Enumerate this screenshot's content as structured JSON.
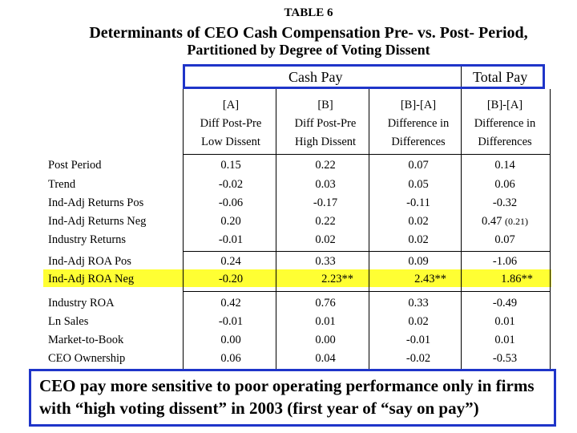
{
  "table_label": "TABLE 6",
  "title_line1": "Determinants of CEO Cash Compensation Pre- vs. Post- Period,",
  "title_line2": "Partitioned by Degree of Voting Dissent",
  "header": {
    "cash_pay": "Cash Pay",
    "total_pay": "Total Pay"
  },
  "columns": [
    {
      "line1": "[A]",
      "line2": "Diff Post-Pre",
      "line3": "Low Dissent"
    },
    {
      "line1": "[B]",
      "line2": "Diff Post-Pre",
      "line3": "High Dissent"
    },
    {
      "line1": "[B]-[A]",
      "line2": "Difference in",
      "line3": "Differences"
    },
    {
      "line1": "[B]-[A]",
      "line2": "Difference in",
      "line3": "Differences"
    }
  ],
  "rows": [
    {
      "label": "Post Period",
      "values": [
        "0.15",
        "0.22",
        "0.07",
        "0.14"
      ]
    },
    {
      "label": "Trend",
      "values": [
        "-0.02",
        "0.03",
        "0.05",
        "0.06"
      ]
    },
    {
      "label": "Ind-Adj Returns Pos",
      "values": [
        "-0.06",
        "-0.17",
        "-0.11",
        "-0.32"
      ]
    },
    {
      "label": "Ind-Adj Returns Neg",
      "values": [
        "0.20",
        "0.22",
        "0.02",
        "0.47"
      ],
      "note": "(0.21)"
    },
    {
      "label": "Industry Returns",
      "values": [
        "-0.01",
        "0.02",
        "0.02",
        "0.07"
      ]
    },
    {
      "label": "Ind-Adj ROA Pos",
      "values": [
        "0.24",
        "0.33",
        "0.09",
        "-1.06"
      ]
    },
    {
      "label": "Ind-Adj ROA Neg",
      "values": [
        "-0.20",
        "2.23**",
        "2.43**",
        "1.86**"
      ]
    },
    {
      "label": "Industry ROA",
      "values": [
        "0.42",
        "0.76",
        "0.33",
        "-0.49"
      ]
    },
    {
      "label": "Ln Sales",
      "values": [
        "-0.01",
        "0.01",
        "0.02",
        "0.01"
      ]
    },
    {
      "label": "Market-to-Book",
      "values": [
        "0.00",
        "0.00",
        "-0.01",
        "0.01"
      ]
    },
    {
      "label": "CEO Ownership",
      "values": [
        "0.06",
        "0.04",
        "-0.02",
        "-0.53"
      ]
    }
  ],
  "callout_text": "CEO pay more sensitive to poor operating performance only in firms with “high voting dissent” in 2003 (first year of “say on pay”)",
  "colors": {
    "highlight": "#ffff33",
    "box_border": "#1f35c9"
  }
}
